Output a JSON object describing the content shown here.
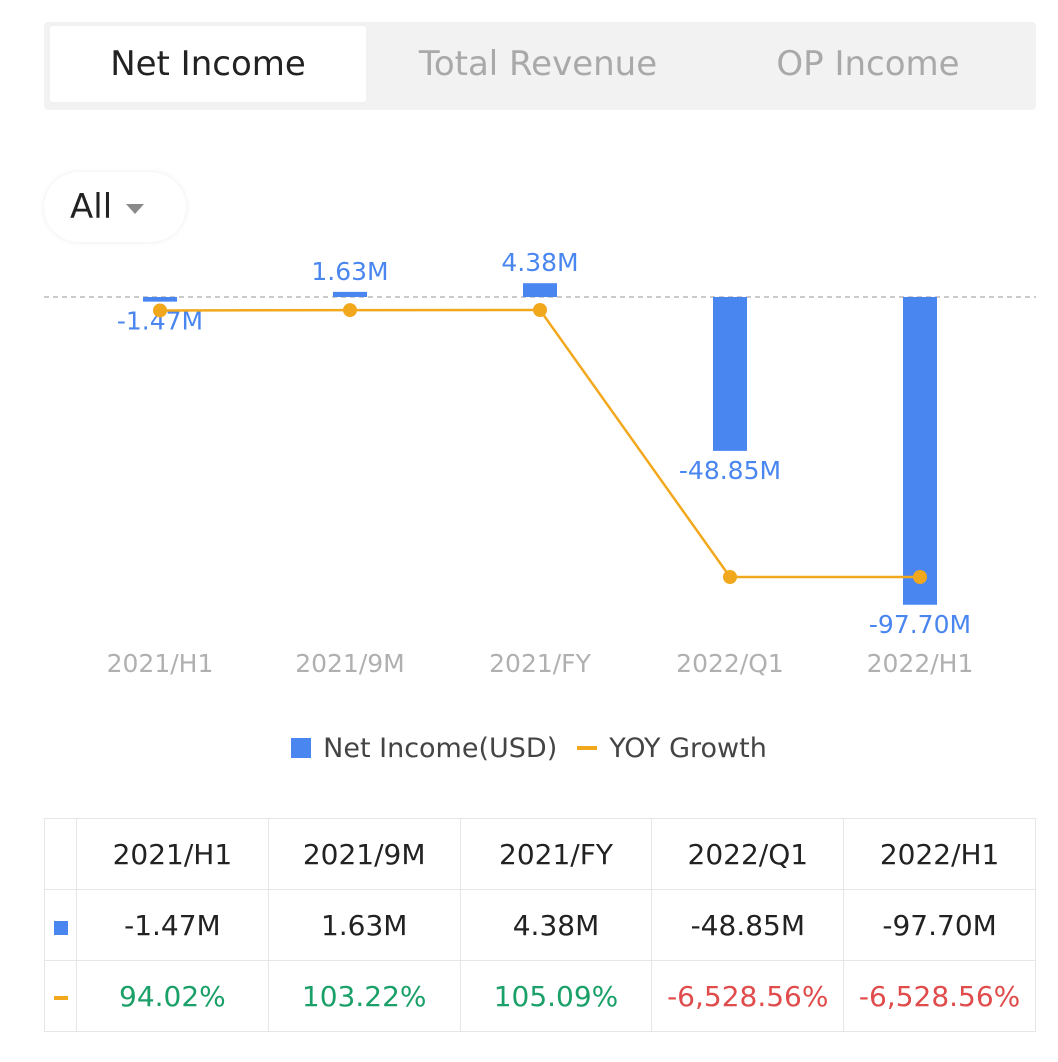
{
  "tabs": [
    {
      "label": "Net Income",
      "active": true
    },
    {
      "label": "Total Revenue",
      "active": false
    },
    {
      "label": "OP Income",
      "active": false
    }
  ],
  "filter": {
    "label": "All",
    "icon": "caret-down-icon"
  },
  "colors": {
    "bar": "#4a86f0",
    "line": "#f2a81d",
    "positive": "#1aa068",
    "negative": "#e04b4b"
  },
  "chart_data": {
    "type": "bar",
    "categories": [
      "2021/H1",
      "2021/9M",
      "2021/FY",
      "2022/Q1",
      "2022/H1"
    ],
    "series": [
      {
        "name": "Net Income(USD)",
        "type": "bar",
        "values": [
          -1.47,
          1.63,
          4.38,
          -48.85,
          -97.7
        ],
        "labels": [
          "-1.47M",
          "1.63M",
          "4.38M",
          "-48.85M",
          "-97.70M"
        ]
      },
      {
        "name": "YOY Growth",
        "type": "line",
        "values": [
          94.02,
          103.22,
          105.09,
          -6528.56,
          -6528.56
        ]
      }
    ],
    "title": "",
    "xlabel": "",
    "ylabel": "",
    "legend": "bottom"
  },
  "table": {
    "headers": [
      "2021/H1",
      "2021/9M",
      "2021/FY",
      "2022/Q1",
      "2022/H1"
    ],
    "net_income": [
      "-1.47M",
      "1.63M",
      "4.38M",
      "-48.85M",
      "-97.70M"
    ],
    "yoy_growth": [
      "94.02%",
      "103.22%",
      "105.09%",
      "-6,528.56%",
      "-6,528.56%"
    ]
  }
}
